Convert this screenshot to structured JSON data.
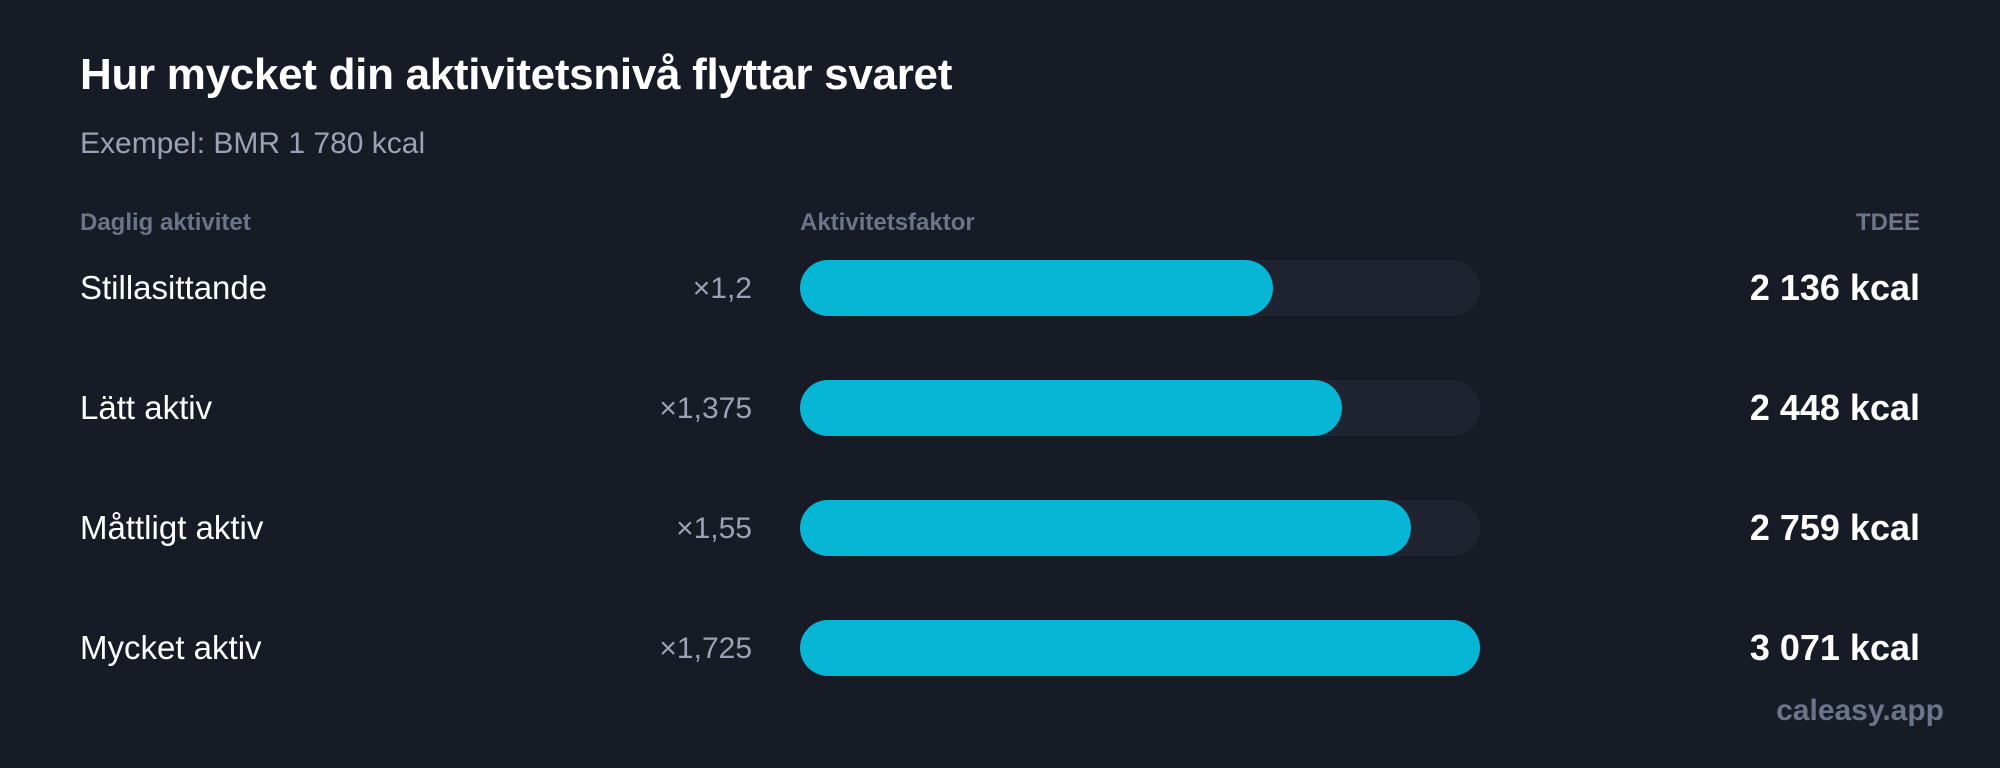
{
  "chart_data": {
    "type": "bar",
    "orientation": "horizontal",
    "title": "Hur mycket din aktivitetsnivå flyttar svaret",
    "subtitle": "Exempel: BMR 1 780 kcal",
    "columns": {
      "activity": "Daglig aktivitet",
      "factor": "Aktivitetsfaktor",
      "tdee": "TDEE"
    },
    "categories": [
      "Stillasittande",
      "Lätt aktiv",
      "Måttligt aktiv",
      "Mycket aktiv"
    ],
    "factor_labels": [
      "×1,2",
      "×1,375",
      "×1,55",
      "×1,725"
    ],
    "values": [
      1.2,
      1.375,
      1.55,
      1.725
    ],
    "tdee_labels": [
      "2 136 kcal",
      "2 448 kcal",
      "2 759 kcal",
      "3 071 kcal"
    ],
    "tdee_values": [
      2136,
      2448,
      2759,
      3071
    ],
    "xlim": [
      0,
      1.725
    ],
    "grid": false,
    "legend": "none",
    "colors": {
      "bar": "#06b6d4",
      "track": "#1f2430",
      "background": "#171b26"
    }
  },
  "brand": "caleasy.app"
}
